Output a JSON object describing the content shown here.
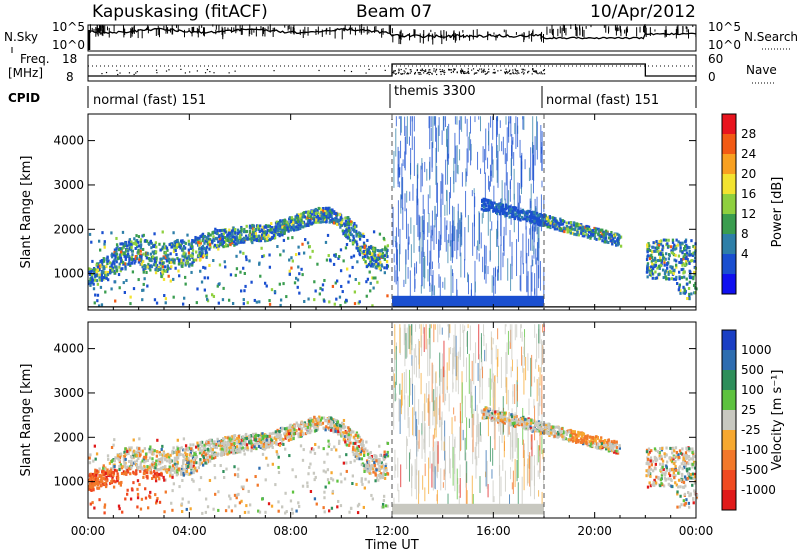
{
  "header": {
    "station": "Kapuskasing (fitACF)",
    "beam": "Beam 07",
    "date": "10/Apr/2012"
  },
  "status_panels": {
    "nsky_label": "N.Sky",
    "nsearch_label": "N.Search",
    "noise_ticks": [
      "10^5",
      "10^0"
    ],
    "freq_label_1": "Freq.",
    "freq_label_2": "[MHz]",
    "freq_ticks": [
      "18",
      "8"
    ],
    "nave_label": "Nave",
    "nave_ticks": [
      "60",
      "0"
    ],
    "cpid_label": "CPID",
    "cpid_segments": [
      {
        "label": "normal (fast) 151",
        "start_hr": 0,
        "end_hr": 12
      },
      {
        "label": "themis 3300",
        "start_hr": 12,
        "end_hr": 18
      },
      {
        "label": "normal (fast) 151",
        "start_hr": 18,
        "end_hr": 24
      }
    ]
  },
  "chart_data": [
    {
      "type": "heatmap",
      "title": "",
      "xlabel": "",
      "ylabel": "Slant Range [km]",
      "xlim": [
        0,
        24
      ],
      "ylim": [
        180,
        4600
      ],
      "x_ticks": [
        "00:00",
        "04:00",
        "08:00",
        "12:00",
        "16:00",
        "20:00",
        "00:00"
      ],
      "y_ticks": [
        "1000",
        "2000",
        "3000",
        "4000"
      ],
      "colorbar": {
        "label": "Power [dB]",
        "ticks": [
          "28",
          "24",
          "20",
          "16",
          "12",
          "8",
          "4"
        ],
        "colors": [
          "#e8141e",
          "#f25a14",
          "#f8a020",
          "#f3e330",
          "#8fd03f",
          "#3a9d4f",
          "#2e7fa8",
          "#1a4fd0",
          "#1010f0"
        ]
      }
    },
    {
      "type": "heatmap",
      "title": "",
      "xlabel": "Time UT",
      "ylabel": "Slant Range [km]",
      "xlim": [
        0,
        24
      ],
      "ylim": [
        180,
        4600
      ],
      "x_ticks": [
        "00:00",
        "04:00",
        "08:00",
        "12:00",
        "16:00",
        "20:00",
        "00:00"
      ],
      "y_ticks": [
        "1000",
        "2000",
        "3000",
        "4000"
      ],
      "colorbar": {
        "label": "Velocity [m s⁻¹]",
        "ticks": [
          "1000",
          "500",
          "100",
          "25",
          "-25",
          "-100",
          "-500",
          "-1000"
        ],
        "colors": [
          "#1a3fc4",
          "#2e6db0",
          "#2e8e5a",
          "#5ec23f",
          "#c8c8c0",
          "#f6a830",
          "#f2782a",
          "#f04a20",
          "#e01a1a"
        ]
      }
    }
  ]
}
